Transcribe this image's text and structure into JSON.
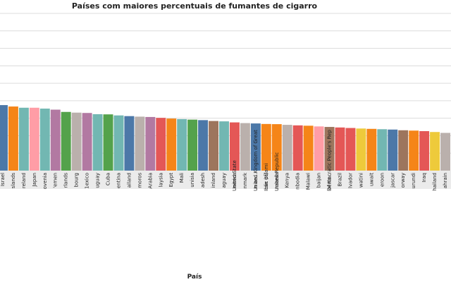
{
  "chart_data": {
    "type": "bar",
    "title": "Países com maiores percentuais de fumantes de cigarro",
    "xlabel": "País",
    "ylabel": "",
    "ylim": [
      0,
      90
    ],
    "grid": true,
    "legend": "none",
    "categories": [
      "Israel",
      "Islands",
      "Ireland",
      "Japan",
      "Slovenia",
      "Yemen",
      "Finlands",
      "Luxembourg",
      "Mexico",
      "Uruguay",
      "Cuba",
      "Argentina",
      "Thailand",
      "Comoros",
      "Saudi Arabia",
      "Malaysia",
      "Egypt",
      "Mali",
      "Tunisia",
      "Bangladesh",
      "Finland",
      "Paraguay",
      "America",
      "Denmark",
      "n an...",
      "Iran (Islamic Republic of)",
      "Tanzania",
      "Kenya",
      "Cambodia",
      "Malawi",
      "Azerbaijan",
      "Korea (Democratic People's Republic of)",
      "Brazil",
      "El Salvador",
      "Eswatini",
      "Kuwait",
      "Cameroon",
      "Madagascar",
      "Norway",
      "Burundi",
      "Iraq",
      "Thailand",
      "Bahrain"
    ],
    "tick_labels": [
      "Israel",
      "slands",
      "reland",
      "Japan",
      "ovenia",
      "'emen",
      "rlands",
      "bourg",
      "1exico",
      "uguay",
      "Cuba",
      "entina",
      "ailand",
      "moros",
      "Arabia",
      "laysia",
      "Egypt",
      "Mali",
      "unisia",
      "adesh",
      "inland",
      "aguay",
      "nerica",
      "nmark",
      "n an...",
      "blic of)",
      "nzania",
      "Kenya",
      "nbodia",
      "Malawi",
      "baijan",
      "of Ko...",
      "Brazil",
      "lvador",
      "watini",
      "uwait",
      "eroon",
      "jascar",
      "orway",
      "urundi",
      "Iraq",
      "hailand",
      "ahrain"
    ],
    "overflow_labels": [
      {
        "index": 22,
        "text": "United State"
      },
      {
        "index": 24,
        "text": "United Kingdom of Great"
      },
      {
        "index": 25,
        "text": "Iran (Islami"
      },
      {
        "index": 26,
        "text": "United Republic"
      },
      {
        "index": 31,
        "text": "Democratic People's Rep"
      }
    ],
    "values": [
      37.5,
      36.7,
      36.0,
      36.0,
      35.5,
      34.9,
      33.6,
      33.2,
      33.0,
      32.3,
      32.2,
      31.6,
      31.2,
      30.9,
      30.7,
      30.2,
      29.8,
      29.5,
      29.2,
      28.9,
      28.4,
      28.2,
      27.6,
      27.2,
      27.0,
      26.7,
      26.6,
      26.2,
      25.9,
      25.7,
      25.3,
      25.0,
      24.7,
      24.4,
      24.1,
      23.9,
      23.7,
      23.5,
      23.1,
      22.9,
      22.6,
      22.1,
      21.6
    ],
    "colors": [
      "#4c78a8",
      "#f58518",
      "#72b7b2",
      "#ff9da6",
      "#72b7b2",
      "#b279a2",
      "#54a24b",
      "#bab0ac",
      "#b279a2",
      "#72b7b2",
      "#54a24b",
      "#72b7b2",
      "#4c78a8",
      "#bab0ac",
      "#b279a2",
      "#e45756",
      "#f58518",
      "#72b7b2",
      "#54a24b",
      "#4c78a8",
      "#9d755d",
      "#72b7b2",
      "#e45756",
      "#bab0ac",
      "#4c78a8",
      "#f58518",
      "#f58518",
      "#bab0ac",
      "#e45756",
      "#f58518",
      "#ff9da6",
      "#9d755d",
      "#e45756",
      "#e45756",
      "#eeca3b",
      "#f58518",
      "#72b7b2",
      "#4c78a8",
      "#9d755d",
      "#f58518",
      "#e45756",
      "#eeca3b",
      "#bab0ac"
    ]
  }
}
